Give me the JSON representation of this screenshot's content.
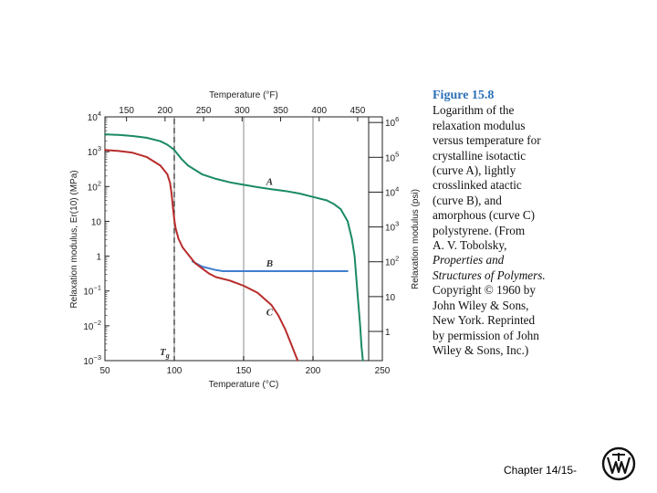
{
  "chart_data": {
    "type": "line",
    "title": "",
    "xlabel": "Temperature (°C)",
    "x2label": "Temperature (°F)",
    "ylabel": "Relaxation modulus, Er(10) (MPa)",
    "y2label": "Relaxation modulus (psi)",
    "xlim": [
      50,
      250
    ],
    "ylim_log10": [
      -3,
      4
    ],
    "grid": "vertical only",
    "x_ticks": [
      "50",
      "100",
      "150",
      "200",
      "250"
    ],
    "x_tick_values": [
      50,
      100,
      150,
      200,
      250
    ],
    "x2_ticks": [
      "150",
      "200",
      "250",
      "300",
      "350",
      "400",
      "450"
    ],
    "x2_tick_values": [
      150,
      200,
      250,
      300,
      350,
      400,
      450
    ],
    "y_ticks": [
      {
        "exp": 4,
        "base": "10",
        "sup": "4"
      },
      {
        "exp": 3,
        "base": "10",
        "sup": "3"
      },
      {
        "exp": 2,
        "base": "10",
        "sup": "2"
      },
      {
        "exp": 1,
        "base": "10",
        "sup": ""
      },
      {
        "exp": 0,
        "base": "1",
        "sup": ""
      },
      {
        "exp": -1,
        "base": "10",
        "sup": "−1"
      },
      {
        "exp": -2,
        "base": "10",
        "sup": "−2"
      },
      {
        "exp": -3,
        "base": "10",
        "sup": "−3"
      }
    ],
    "y2_ticks": [
      {
        "exp": 6,
        "base": "10",
        "sup": "6"
      },
      {
        "exp": 5,
        "base": "10",
        "sup": "5"
      },
      {
        "exp": 4,
        "base": "10",
        "sup": "4"
      },
      {
        "exp": 3,
        "base": "10",
        "sup": "3"
      },
      {
        "exp": 2,
        "base": "10",
        "sup": "2"
      },
      {
        "exp": 1,
        "base": "10",
        "sup": ""
      },
      {
        "exp": 0,
        "base": "1",
        "sup": ""
      }
    ],
    "tg_line": {
      "x": 100,
      "label": "T",
      "sub": "g"
    },
    "series": [
      {
        "name": "A",
        "color": "#1a8a63",
        "x": [
          50,
          60,
          70,
          80,
          90,
          95,
          100,
          105,
          110,
          120,
          130,
          140,
          150,
          160,
          170,
          180,
          190,
          200,
          210,
          215,
          220,
          225,
          228,
          230,
          232,
          234,
          235,
          236
        ],
        "log10_y": [
          3.5,
          3.48,
          3.45,
          3.4,
          3.3,
          3.2,
          3.05,
          2.8,
          2.6,
          2.35,
          2.22,
          2.12,
          2.05,
          1.98,
          1.92,
          1.87,
          1.8,
          1.7,
          1.6,
          1.5,
          1.35,
          1.0,
          0.5,
          0.0,
          -1.0,
          -2.0,
          -2.6,
          -3.0
        ]
      },
      {
        "name": "B",
        "color": "#3f7fd0",
        "x": [
          113,
          120,
          130,
          135,
          140,
          150,
          170,
          190,
          210,
          225
        ],
        "log10_y": [
          -0.15,
          -0.3,
          -0.4,
          -0.43,
          -0.43,
          -0.43,
          -0.43,
          -0.43,
          -0.43,
          -0.43
        ]
      },
      {
        "name": "C",
        "color": "#b82c2c",
        "x": [
          50,
          60,
          70,
          80,
          90,
          95,
          97,
          98,
          99,
          100,
          101,
          103,
          106,
          110,
          115,
          120,
          125,
          130,
          140,
          150,
          160,
          170,
          175,
          180,
          184,
          187,
          189
        ],
        "log10_y": [
          3.05,
          3.02,
          2.97,
          2.85,
          2.6,
          2.35,
          2.1,
          1.8,
          1.4,
          1.05,
          0.8,
          0.5,
          0.25,
          0.05,
          -0.2,
          -0.35,
          -0.5,
          -0.6,
          -0.7,
          -0.85,
          -1.05,
          -1.4,
          -1.7,
          -2.1,
          -2.5,
          -2.8,
          -3.0
        ]
      }
    ],
    "curve_labels": [
      {
        "text": "A",
        "x": 140,
        "log10_y": 2.15
      },
      {
        "text": "B",
        "x": 140,
        "log10_y": -0.2
      },
      {
        "text": "C",
        "x": 140,
        "log10_y": -1.6
      }
    ]
  },
  "caption": {
    "title": "Figure 15.8",
    "lines": [
      {
        "text": "Logarithm of the",
        "italic": false
      },
      {
        "text": "relaxation modulus",
        "italic": false
      },
      {
        "text": "versus temperature for",
        "italic": false
      },
      {
        "text": "crystalline isotactic",
        "italic": false
      },
      {
        "text": "(curve A), lightly",
        "italic": false
      },
      {
        "text": "crosslinked atactic",
        "italic": false
      },
      {
        "text": "(curve B), and",
        "italic": false
      },
      {
        "text": "amorphous (curve C)",
        "italic": false
      },
      {
        "text": "polystyrene. (From",
        "italic": false
      },
      {
        "text": "A. V. Tobolsky,",
        "italic": false
      },
      {
        "text": "Properties and",
        "italic": true
      },
      {
        "text": "Structures of Polymers.",
        "italic": true
      },
      {
        "text": "Copyright © 1960 by",
        "italic": false
      },
      {
        "text": "John Wiley & Sons,",
        "italic": false
      },
      {
        "text": "New York. Reprinted",
        "italic": false
      },
      {
        "text": "by permission of John",
        "italic": false
      },
      {
        "text": "Wiley & Sons, Inc.)",
        "italic": false
      }
    ]
  },
  "footer": {
    "text": "Chapter 14/15-"
  },
  "logo": {
    "name": "wiley-logo-icon"
  }
}
